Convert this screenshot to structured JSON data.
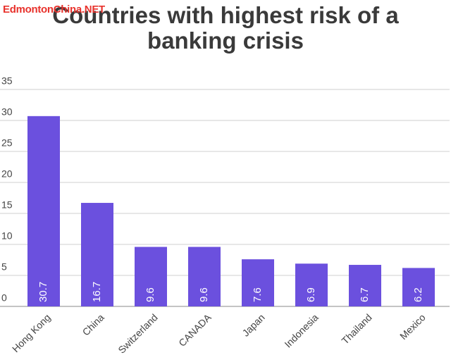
{
  "chart_data": {
    "type": "bar",
    "title": "Countries with highest risk of a banking crisis",
    "watermark": "EdmontonChina.NET",
    "categories": [
      "Hong Kong",
      "China",
      "Switzerland",
      "CANADA",
      "Japan",
      "Indonesia",
      "Thailand",
      "Mexico"
    ],
    "values": [
      30.7,
      16.7,
      9.6,
      9.6,
      7.6,
      6.9,
      6.7,
      6.2
    ],
    "color": "#6b50de",
    "ylim": [
      0,
      35
    ],
    "yticks": [
      0,
      5,
      10,
      15,
      20,
      25,
      30,
      35
    ],
    "grid": true
  }
}
